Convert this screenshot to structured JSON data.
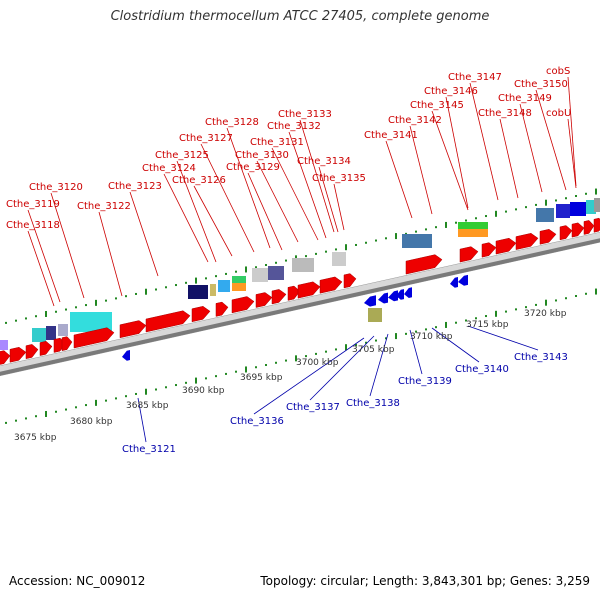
{
  "title": "Clostridium thermocellum ATCC 27405, complete genome",
  "footer": {
    "accession": "Accession: NC_009012",
    "summary": "Topology: circular; Length: 3,843,301 bp; Genes: 3,259"
  },
  "colors": {
    "forward_gene": "#ee0000",
    "reverse_gene": "#0000dd",
    "backbone": "#888888",
    "tick": "#228822"
  },
  "upper_labels": [
    "Cthe_3118",
    "Cthe_3119",
    "Cthe_3120",
    "Cthe_3122",
    "Cthe_3123",
    "Cthe_3124",
    "Cthe_3125",
    "Cthe_3126",
    "Cthe_3127",
    "Cthe_3128",
    "Cthe_3129",
    "Cthe_3130",
    "Cthe_3131",
    "Cthe_3132",
    "Cthe_3133",
    "Cthe_3134",
    "Cthe_3135",
    "Cthe_3141",
    "Cthe_3142",
    "Cthe_3145",
    "Cthe_3146",
    "Cthe_3147",
    "Cthe_3148",
    "Cthe_3149",
    "Cthe_3150",
    "cobS",
    "cobU"
  ],
  "lower_labels": [
    "Cthe_3121",
    "Cthe_3136",
    "Cthe_3137",
    "Cthe_3138",
    "Cthe_3139",
    "Cthe_3140",
    "Cthe_3143"
  ],
  "kbp_labels": [
    "3675 kbp",
    "3680 kbp",
    "3685 kbp",
    "3690 kbp",
    "3695 kbp",
    "3700 kbp",
    "3705 kbp",
    "3710 kbp",
    "3715 kbp",
    "3720 kbp"
  ]
}
